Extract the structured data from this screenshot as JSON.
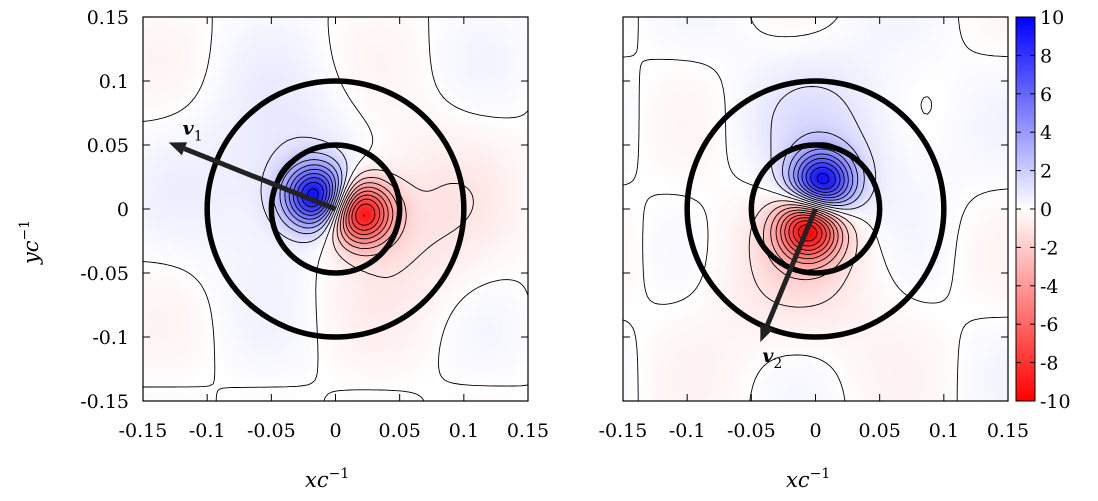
{
  "chart_data": [
    {
      "type": "heatmap",
      "panel": "left",
      "xlabel": "xc",
      "xlabel_exp": "−1",
      "ylabel": "yc",
      "ylabel_exp": "−1",
      "xlim": [
        -0.15,
        0.15
      ],
      "ylim": [
        -0.15,
        0.15
      ],
      "xticks": [
        "-0.15",
        "-0.1",
        "-0.05",
        "0",
        "0.05",
        "0.1",
        "0.15"
      ],
      "yticks": [
        "0.15",
        "0.1",
        "0.05",
        "0",
        "-0.05",
        "-0.1",
        "-0.15"
      ],
      "dipole": {
        "positive_center": [
          -0.015,
          0.01
        ],
        "negative_center": [
          0.02,
          -0.003
        ],
        "peak_value": 9.5
      },
      "circles": [
        {
          "center": [
            0,
            0
          ],
          "radius": 0.05
        },
        {
          "center": [
            0,
            0
          ],
          "radius": 0.1
        }
      ],
      "vector": {
        "label": "v",
        "subscript": "1",
        "from": [
          0,
          0
        ],
        "to": [
          -0.13,
          0.052
        ]
      }
    },
    {
      "type": "heatmap",
      "panel": "right",
      "xlabel": "xc",
      "xlabel_exp": "−1",
      "xlim": [
        -0.15,
        0.15
      ],
      "ylim": [
        -0.15,
        0.15
      ],
      "xticks": [
        "-0.15",
        "-0.1",
        "-0.05",
        "0",
        "0.05",
        "0.1",
        "0.15"
      ],
      "dipole": {
        "positive_center": [
          0.005,
          0.02
        ],
        "negative_center": [
          -0.005,
          -0.015
        ],
        "peak_value": 9.5
      },
      "circles": [
        {
          "center": [
            0,
            0
          ],
          "radius": 0.05
        },
        {
          "center": [
            0,
            0
          ],
          "radius": 0.1
        }
      ],
      "vector": {
        "label": "v",
        "subscript": "2",
        "from": [
          0,
          0
        ],
        "to": [
          -0.043,
          -0.104
        ]
      }
    }
  ],
  "colorbar": {
    "range": [
      -10,
      10
    ],
    "ticks": [
      "10",
      "8",
      "6",
      "4",
      "2",
      "0",
      "-2",
      "-4",
      "-6",
      "-8",
      "-10"
    ],
    "colors": {
      "max": "#0000ff",
      "mid": "#ffffff",
      "min": "#ff0000"
    }
  }
}
